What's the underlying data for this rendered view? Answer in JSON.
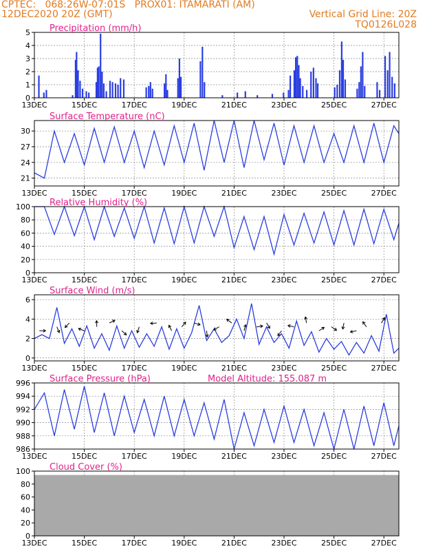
{
  "header": {
    "line1": "CPTEC:   068:26W-07:01S   PROX01: ITAMARATI (AM)",
    "line2": "12DEC2020 20Z (GMT)",
    "grid_note": "Vertical Grid Line: 20Z",
    "code": "TQ0126L028",
    "model_altitude": "Model Altitude: 155.087 m"
  },
  "colors": {
    "header": "#e07b20",
    "title": "#e0208c",
    "line": "#2a3ee0",
    "cloud": "#a9a9a9",
    "grid": "#888888"
  },
  "x_axis": {
    "type": "time (days since 12DEC2020 20Z)",
    "range": [
      0,
      14.6
    ],
    "tick_positions": [
      0,
      2,
      4,
      6,
      8,
      10,
      12,
      14
    ],
    "tick_labels": [
      "13DEC",
      "15DEC",
      "17DEC",
      "19DEC",
      "21DEC",
      "23DEC",
      "25DEC",
      "27DEC"
    ]
  },
  "chart_data": [
    {
      "type": "bar",
      "title": "Precipitation (mm/h)",
      "ylim": [
        0,
        5
      ],
      "yticks": [
        0,
        1,
        2,
        3,
        4,
        5
      ],
      "grid": true,
      "bars": [
        [
          0.15,
          1.7
        ],
        [
          0.35,
          0.4
        ],
        [
          0.45,
          0.6
        ],
        [
          1.5,
          0.2
        ],
        [
          1.62,
          2.9
        ],
        [
          1.66,
          3.5
        ],
        [
          1.72,
          2.1
        ],
        [
          1.8,
          1.3
        ],
        [
          1.9,
          0.7
        ],
        [
          2.05,
          0.5
        ],
        [
          2.15,
          0.4
        ],
        [
          2.45,
          1.2
        ],
        [
          2.5,
          2.3
        ],
        [
          2.55,
          2.4
        ],
        [
          2.62,
          4.9
        ],
        [
          2.68,
          2.0
        ],
        [
          2.75,
          1.1
        ],
        [
          2.85,
          0.5
        ],
        [
          3.0,
          1.3
        ],
        [
          3.1,
          1.2
        ],
        [
          3.22,
          1.1
        ],
        [
          3.32,
          1.0
        ],
        [
          3.42,
          1.5
        ],
        [
          3.55,
          1.4
        ],
        [
          4.45,
          0.8
        ],
        [
          4.55,
          0.9
        ],
        [
          4.62,
          1.2
        ],
        [
          4.7,
          0.7
        ],
        [
          5.18,
          1.1
        ],
        [
          5.24,
          1.8
        ],
        [
          5.3,
          0.6
        ],
        [
          5.72,
          1.5
        ],
        [
          5.78,
          3.0
        ],
        [
          5.84,
          1.6
        ],
        [
          6.62,
          2.8
        ],
        [
          6.7,
          3.9
        ],
        [
          6.78,
          1.2
        ],
        [
          7.5,
          0.2
        ],
        [
          8.1,
          0.4
        ],
        [
          8.42,
          0.5
        ],
        [
          8.9,
          0.2
        ],
        [
          9.5,
          0.3
        ],
        [
          9.95,
          0.4
        ],
        [
          10.15,
          0.6
        ],
        [
          10.22,
          1.7
        ],
        [
          10.38,
          2.1
        ],
        [
          10.44,
          3.1
        ],
        [
          10.5,
          3.2
        ],
        [
          10.56,
          2.5
        ],
        [
          10.62,
          1.5
        ],
        [
          10.72,
          0.9
        ],
        [
          10.88,
          0.6
        ],
        [
          11.05,
          2.0
        ],
        [
          11.15,
          2.3
        ],
        [
          11.25,
          1.5
        ],
        [
          11.32,
          1.1
        ],
        [
          12.0,
          0.8
        ],
        [
          12.1,
          1.0
        ],
        [
          12.2,
          2.1
        ],
        [
          12.28,
          4.3
        ],
        [
          12.34,
          2.9
        ],
        [
          12.42,
          1.4
        ],
        [
          12.9,
          0.7
        ],
        [
          12.98,
          1.2
        ],
        [
          13.05,
          2.4
        ],
        [
          13.12,
          3.5
        ],
        [
          13.2,
          0.9
        ],
        [
          13.7,
          1.2
        ],
        [
          13.8,
          0.6
        ],
        [
          14.02,
          3.2
        ],
        [
          14.12,
          2.1
        ],
        [
          14.2,
          3.5
        ],
        [
          14.3,
          1.6
        ],
        [
          14.4,
          1.1
        ]
      ]
    },
    {
      "type": "line",
      "title": "Surface Temperature (nC)",
      "ylim": [
        19.5,
        32
      ],
      "yticks": [
        21,
        24,
        27,
        30
      ],
      "grid": true,
      "x": [
        0,
        0.4,
        0.8,
        1.2,
        1.6,
        2.0,
        2.4,
        2.8,
        3.2,
        3.6,
        4.0,
        4.4,
        4.8,
        5.2,
        5.6,
        6.0,
        6.4,
        6.8,
        7.2,
        7.6,
        8.0,
        8.4,
        8.8,
        9.2,
        9.6,
        10.0,
        10.4,
        10.8,
        11.2,
        11.6,
        12.0,
        12.4,
        12.8,
        13.2,
        13.6,
        14.0,
        14.4,
        14.6
      ],
      "y": [
        22.0,
        21.0,
        30.0,
        24.0,
        29.5,
        23.5,
        30.5,
        24.0,
        30.8,
        24.0,
        30.0,
        23.0,
        30.0,
        23.5,
        31.0,
        24.0,
        31.5,
        22.5,
        32.0,
        24.0,
        32.0,
        23.0,
        32.0,
        24.5,
        31.5,
        23.5,
        31.0,
        24.0,
        31.0,
        24.0,
        29.5,
        24.0,
        31.0,
        24.0,
        31.5,
        24.0,
        31.0,
        29.5
      ]
    },
    {
      "type": "line",
      "title": "Relative Humidity (%)",
      "ylim": [
        0,
        100
      ],
      "yticks": [
        0,
        20,
        40,
        60,
        80,
        100
      ],
      "grid": true,
      "x": [
        0,
        0.4,
        0.8,
        1.2,
        1.6,
        2.0,
        2.4,
        2.8,
        3.2,
        3.6,
        4.0,
        4.4,
        4.8,
        5.2,
        5.6,
        6.0,
        6.4,
        6.8,
        7.2,
        7.6,
        8.0,
        8.4,
        8.8,
        9.2,
        9.6,
        10.0,
        10.4,
        10.8,
        11.2,
        11.6,
        12.0,
        12.4,
        12.8,
        13.2,
        13.6,
        14.0,
        14.4,
        14.6
      ],
      "y": [
        100,
        100,
        58,
        100,
        56,
        100,
        50,
        100,
        55,
        98,
        52,
        100,
        45,
        98,
        44,
        100,
        45,
        100,
        55,
        100,
        38,
        85,
        35,
        85,
        28,
        88,
        42,
        90,
        45,
        92,
        42,
        94,
        42,
        96,
        44,
        96,
        50,
        75
      ]
    },
    {
      "type": "line",
      "title": "Surface Wind (m/s)",
      "ylim": [
        -0.3,
        6.5
      ],
      "yticks": [
        0,
        2,
        4,
        6
      ],
      "grid": true,
      "x": [
        0,
        0.3,
        0.6,
        0.9,
        1.2,
        1.5,
        1.8,
        2.1,
        2.4,
        2.7,
        3.0,
        3.3,
        3.6,
        3.9,
        4.2,
        4.5,
        4.8,
        5.1,
        5.4,
        5.7,
        6.0,
        6.3,
        6.6,
        6.9,
        7.2,
        7.5,
        7.8,
        8.1,
        8.4,
        8.7,
        9.0,
        9.3,
        9.6,
        9.9,
        10.2,
        10.5,
        10.8,
        11.1,
        11.4,
        11.7,
        12.0,
        12.3,
        12.6,
        12.9,
        13.2,
        13.5,
        13.8,
        14.1,
        14.4,
        14.6
      ],
      "y": [
        2.0,
        2.4,
        2.0,
        5.2,
        1.5,
        3.0,
        1.2,
        3.3,
        1.0,
        2.5,
        0.8,
        3.3,
        1.0,
        2.8,
        1.1,
        2.5,
        1.2,
        3.2,
        0.9,
        3.0,
        1.0,
        2.6,
        5.4,
        1.8,
        3.0,
        1.6,
        2.3,
        4.0,
        2.0,
        5.6,
        1.4,
        3.2,
        1.6,
        2.5,
        1.0,
        3.8,
        1.3,
        2.7,
        0.6,
        2.0,
        0.9,
        1.7,
        0.3,
        1.6,
        0.5,
        2.3,
        0.7,
        4.5,
        0.5,
        1.0
      ],
      "arrows_at": [
        0.2,
        0.9,
        1.4,
        2.0,
        2.5,
        3.0,
        3.5,
        4.2,
        4.9,
        5.5,
        5.9,
        6.4,
        6.9,
        7.4,
        7.9,
        8.4,
        8.9,
        9.3,
        9.9,
        10.4,
        10.9,
        11.4,
        11.9,
        12.4,
        12.9,
        13.3,
        13.9
      ]
    },
    {
      "type": "line",
      "title": "Surface Pressure (hPa)",
      "ylim": [
        986,
        996
      ],
      "yticks": [
        986,
        988,
        990,
        992,
        994,
        996
      ],
      "grid": true,
      "x": [
        0,
        0.4,
        0.8,
        1.2,
        1.6,
        2.0,
        2.4,
        2.8,
        3.2,
        3.6,
        4.0,
        4.4,
        4.8,
        5.2,
        5.6,
        6.0,
        6.4,
        6.8,
        7.2,
        7.6,
        8.0,
        8.4,
        8.8,
        9.2,
        9.6,
        10.0,
        10.4,
        10.8,
        11.2,
        11.6,
        12.0,
        12.4,
        12.8,
        13.2,
        13.6,
        14.0,
        14.4,
        14.6
      ],
      "y": [
        992.0,
        994.5,
        988.0,
        995.0,
        989.0,
        995.5,
        988.5,
        994.5,
        988.0,
        994.0,
        988.5,
        993.5,
        988.0,
        994.0,
        988.0,
        993.5,
        988.0,
        993.0,
        987.5,
        993.5,
        986.0,
        991.5,
        986.5,
        992.0,
        987.0,
        992.5,
        987.0,
        992.0,
        986.5,
        991.5,
        986.0,
        992.0,
        986.0,
        992.5,
        986.5,
        993.0,
        986.5,
        989.5
      ]
    },
    {
      "type": "bar",
      "title": "Cloud Cover (%)",
      "ylim": [
        0,
        100
      ],
      "yticks": [
        0,
        20,
        40,
        60,
        80,
        100
      ],
      "grid": true,
      "fill_level": 94
    }
  ]
}
